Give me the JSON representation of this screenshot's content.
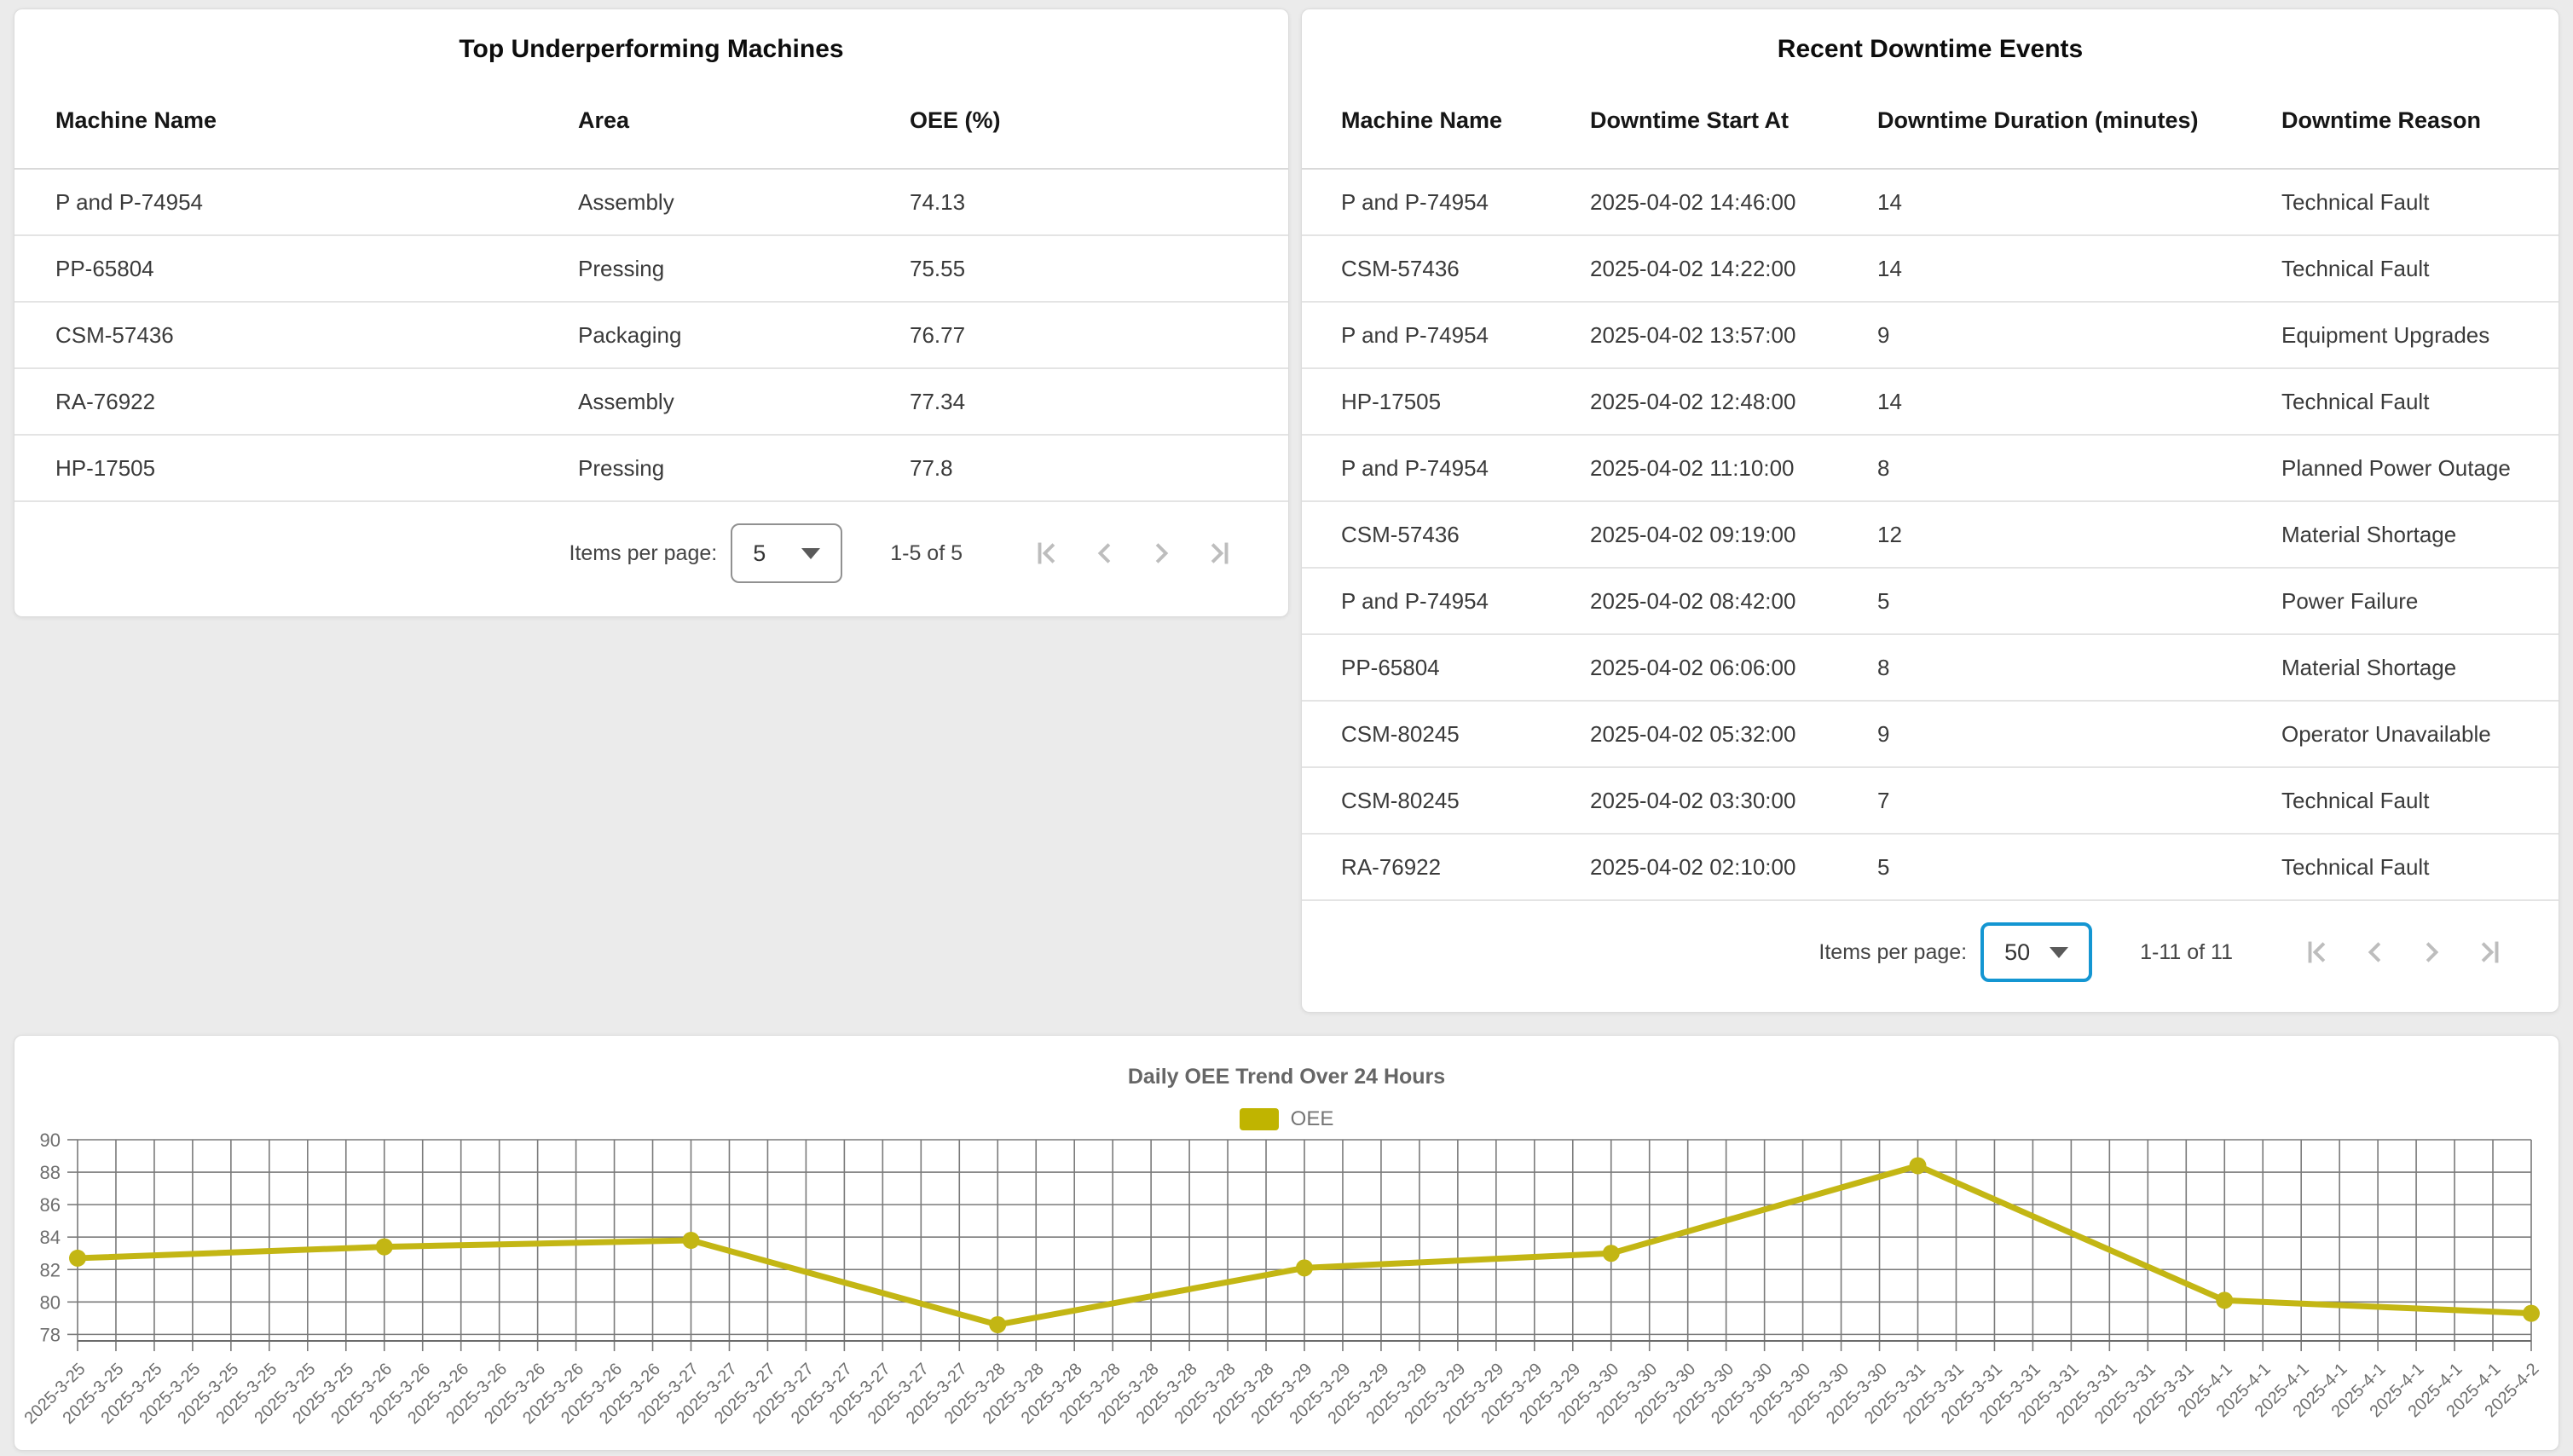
{
  "left_table": {
    "title": "Top Underperforming Machines",
    "columns": [
      "Machine Name",
      "Area",
      "OEE (%)"
    ],
    "rows": [
      [
        "P and P-74954",
        "Assembly",
        "74.13"
      ],
      [
        "PP-65804",
        "Pressing",
        "75.55"
      ],
      [
        "CSM-57436",
        "Packaging",
        "76.77"
      ],
      [
        "RA-76922",
        "Assembly",
        "77.34"
      ],
      [
        "HP-17505",
        "Pressing",
        "77.8"
      ]
    ],
    "pagination": {
      "label": "Items per page:",
      "page_size": "5",
      "range": "1-5 of 5"
    }
  },
  "right_table": {
    "title": "Recent Downtime Events",
    "columns": [
      "Machine Name",
      "Downtime Start At",
      "Downtime Duration (minutes)",
      "Downtime Reason"
    ],
    "rows": [
      [
        "P and P-74954",
        "2025-04-02 14:46:00",
        "14",
        "Technical Fault"
      ],
      [
        "CSM-57436",
        "2025-04-02 14:22:00",
        "14",
        "Technical Fault"
      ],
      [
        "P and P-74954",
        "2025-04-02 13:57:00",
        "9",
        "Equipment Upgrades"
      ],
      [
        "HP-17505",
        "2025-04-02 12:48:00",
        "14",
        "Technical Fault"
      ],
      [
        "P and P-74954",
        "2025-04-02 11:10:00",
        "8",
        "Planned Power Outage"
      ],
      [
        "CSM-57436",
        "2025-04-02 09:19:00",
        "12",
        "Material Shortage"
      ],
      [
        "P and P-74954",
        "2025-04-02 08:42:00",
        "5",
        "Power Failure"
      ],
      [
        "PP-65804",
        "2025-04-02 06:06:00",
        "8",
        "Material Shortage"
      ],
      [
        "CSM-80245",
        "2025-04-02 05:32:00",
        "9",
        "Operator Unavailable"
      ],
      [
        "CSM-80245",
        "2025-04-02 03:30:00",
        "7",
        "Technical Fault"
      ],
      [
        "RA-76922",
        "2025-04-02 02:10:00",
        "5",
        "Technical Fault"
      ]
    ],
    "pagination": {
      "label": "Items per page:",
      "page_size": "50",
      "range": "1-11 of 11"
    }
  },
  "chart_data": {
    "type": "line",
    "title": "Daily OEE Trend Over 24 Hours",
    "legend": [
      "OEE"
    ],
    "legend_position": "top",
    "grid": true,
    "ylim": [
      78,
      90
    ],
    "ytick_step": 2,
    "x_days": [
      {
        "label": "2025-3-25",
        "ticks": 8
      },
      {
        "label": "2025-3-26",
        "ticks": 8
      },
      {
        "label": "2025-3-27",
        "ticks": 8
      },
      {
        "label": "2025-3-28",
        "ticks": 8
      },
      {
        "label": "2025-3-29",
        "ticks": 8
      },
      {
        "label": "2025-3-30",
        "ticks": 8
      },
      {
        "label": "2025-3-31",
        "ticks": 8
      },
      {
        "label": "2025-4-1",
        "ticks": 8
      },
      {
        "label": "2025-4-2",
        "ticks": 1
      }
    ],
    "series": [
      {
        "name": "OEE",
        "x": [
          "2025-3-25",
          "2025-3-26",
          "2025-3-27",
          "2025-3-28",
          "2025-3-29",
          "2025-3-30",
          "2025-3-31",
          "2025-4-1",
          "2025-4-2"
        ],
        "values": [
          82.7,
          83.4,
          83.8,
          78.6,
          82.1,
          83.0,
          88.4,
          80.1,
          79.3
        ]
      }
    ]
  },
  "colors": {
    "line": "#c3b614",
    "legend_swatch": "#c0b400",
    "grid": "#7a7a7a",
    "axis_label": "#6e6e6e",
    "select_focus": "#1496d2",
    "nav_icon_disabled": "#bdbdbd"
  }
}
